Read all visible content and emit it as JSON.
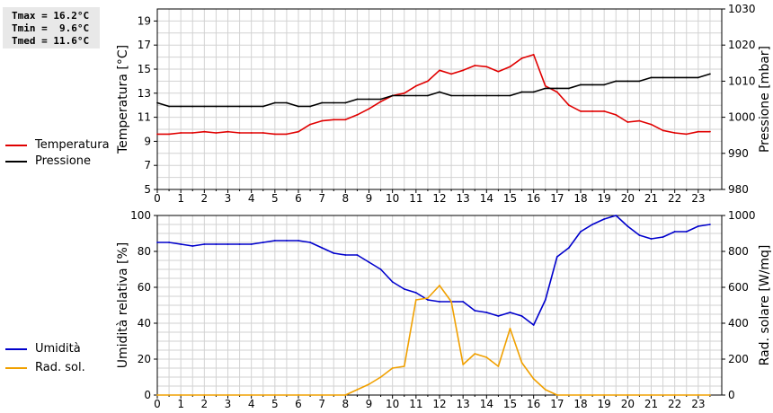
{
  "stats": {
    "tmax": "Tmax = 16.2°C",
    "tmin": "Tmin =  9.6°C",
    "tmed": "Tmed = 11.6°C"
  },
  "legend_top": [
    {
      "label": "Temperatura",
      "color": "#e00000"
    },
    {
      "label": "Pressione",
      "color": "#000000"
    }
  ],
  "legend_bottom": [
    {
      "label": "Umidità",
      "color": "#0000cc"
    },
    {
      "label": "Rad. sol.",
      "color": "#f0a000"
    }
  ],
  "chart_data": [
    {
      "type": "line",
      "xlim": [
        0,
        24
      ],
      "x_ticks": [
        "0",
        "1",
        "2",
        "3",
        "4",
        "5",
        "6",
        "7",
        "8",
        "9",
        "10",
        "11",
        "12",
        "13",
        "14",
        "15",
        "16",
        "17",
        "18",
        "19",
        "20",
        "21",
        "22",
        "23"
      ],
      "grid": true,
      "axes": {
        "left": {
          "label": "Temperatura [°C]",
          "range": [
            5,
            20
          ],
          "ticks": [
            "5",
            "7",
            "9",
            "11",
            "13",
            "15",
            "17",
            "19"
          ]
        },
        "right": {
          "label": "Pressione [mbar]",
          "range": [
            980,
            1030
          ],
          "ticks": [
            "980",
            "990",
            "1000",
            "1010",
            "1020",
            "1030"
          ]
        }
      },
      "series": [
        {
          "name": "Temperatura",
          "axis": "left",
          "color": "#e00000",
          "x": [
            0,
            0.5,
            1,
            1.5,
            2,
            2.5,
            3,
            3.5,
            4,
            4.5,
            5,
            5.5,
            6,
            6.5,
            7,
            7.5,
            8,
            8.5,
            9,
            9.5,
            10,
            10.5,
            11,
            11.5,
            12,
            12.5,
            13,
            13.5,
            14,
            14.5,
            15,
            15.5,
            16,
            16.5,
            17,
            17.5,
            18,
            18.5,
            19,
            19.5,
            20,
            20.5,
            21,
            21.5,
            22,
            22.5,
            23,
            23.5
          ],
          "y": [
            9.6,
            9.6,
            9.7,
            9.7,
            9.8,
            9.7,
            9.8,
            9.7,
            9.7,
            9.7,
            9.6,
            9.6,
            9.8,
            10.4,
            10.7,
            10.8,
            10.8,
            11.2,
            11.7,
            12.3,
            12.8,
            13.0,
            13.6,
            14.0,
            14.9,
            14.6,
            14.9,
            15.3,
            15.2,
            14.8,
            15.2,
            15.9,
            16.2,
            13.6,
            13.1,
            12.0,
            11.5,
            11.5,
            11.5,
            11.2,
            10.6,
            10.7,
            10.4,
            9.9,
            9.7,
            9.6,
            9.8,
            9.8
          ]
        },
        {
          "name": "Pressione",
          "axis": "right",
          "color": "#000000",
          "x": [
            0,
            0.5,
            1,
            1.5,
            2,
            2.5,
            3,
            3.5,
            4,
            4.5,
            5,
            5.5,
            6,
            6.5,
            7,
            7.5,
            8,
            8.5,
            9,
            9.5,
            10,
            10.5,
            11,
            11.5,
            12,
            12.5,
            13,
            13.5,
            14,
            14.5,
            15,
            15.5,
            16,
            16.5,
            17,
            17.5,
            18,
            18.5,
            19,
            19.5,
            20,
            20.5,
            21,
            21.5,
            22,
            22.5,
            23,
            23.5
          ],
          "y": [
            1004,
            1003,
            1003,
            1003,
            1003,
            1003,
            1003,
            1003,
            1003,
            1003,
            1004,
            1004,
            1003,
            1003,
            1004,
            1004,
            1004,
            1005,
            1005,
            1005,
            1006,
            1006,
            1006,
            1006,
            1007,
            1006,
            1006,
            1006,
            1006,
            1006,
            1006,
            1007,
            1007,
            1008,
            1008,
            1008,
            1009,
            1009,
            1009,
            1010,
            1010,
            1010,
            1011,
            1011,
            1011,
            1011,
            1011,
            1012
          ]
        }
      ]
    },
    {
      "type": "line",
      "xlim": [
        0,
        24
      ],
      "x_ticks": [
        "0",
        "1",
        "2",
        "3",
        "4",
        "5",
        "6",
        "7",
        "8",
        "9",
        "10",
        "11",
        "12",
        "13",
        "14",
        "15",
        "16",
        "17",
        "18",
        "19",
        "20",
        "21",
        "22",
        "23"
      ],
      "grid": true,
      "axes": {
        "left": {
          "label": "Umidità relativa [%]",
          "range": [
            0,
            100
          ],
          "ticks": [
            "0",
            "20",
            "40",
            "60",
            "80",
            "100"
          ]
        },
        "right": {
          "label": "Rad. solare [W/mq]",
          "range": [
            0,
            1000
          ],
          "ticks": [
            "0",
            "200",
            "400",
            "600",
            "800",
            "1000"
          ]
        }
      },
      "series": [
        {
          "name": "Umidità",
          "axis": "left",
          "color": "#0000cc",
          "x": [
            0,
            0.5,
            1,
            1.5,
            2,
            2.5,
            3,
            3.5,
            4,
            4.5,
            5,
            5.5,
            6,
            6.5,
            7,
            7.5,
            8,
            8.5,
            9,
            9.5,
            10,
            10.5,
            11,
            11.5,
            12,
            12.5,
            13,
            13.5,
            14,
            14.5,
            15,
            15.5,
            16,
            16.5,
            17,
            17.5,
            18,
            18.5,
            19,
            19.5,
            20,
            20.5,
            21,
            21.5,
            22,
            22.5,
            23,
            23.5
          ],
          "y": [
            85,
            85,
            84,
            83,
            84,
            84,
            84,
            84,
            84,
            85,
            86,
            86,
            86,
            85,
            82,
            79,
            78,
            78,
            74,
            70,
            63,
            59,
            57,
            53,
            52,
            52,
            52,
            47,
            46,
            44,
            46,
            44,
            39,
            53,
            77,
            82,
            91,
            95,
            98,
            100,
            94,
            89,
            87,
            88,
            91,
            91,
            94,
            95
          ]
        },
        {
          "name": "Rad. sol.",
          "axis": "right",
          "color": "#f0a000",
          "x": [
            0,
            1,
            2,
            3,
            4,
            5,
            6,
            7,
            8,
            8.5,
            9,
            9.5,
            10,
            10.5,
            11,
            11.5,
            12,
            12.5,
            13,
            13.5,
            14,
            14.5,
            15,
            15.5,
            16,
            16.5,
            17,
            18,
            19,
            20,
            21,
            22,
            23,
            23.5
          ],
          "y": [
            0,
            0,
            0,
            0,
            0,
            0,
            0,
            0,
            0,
            30,
            60,
            100,
            150,
            160,
            530,
            540,
            610,
            520,
            170,
            230,
            210,
            160,
            370,
            180,
            90,
            30,
            0,
            0,
            0,
            0,
            0,
            0,
            0,
            0
          ]
        }
      ]
    }
  ]
}
